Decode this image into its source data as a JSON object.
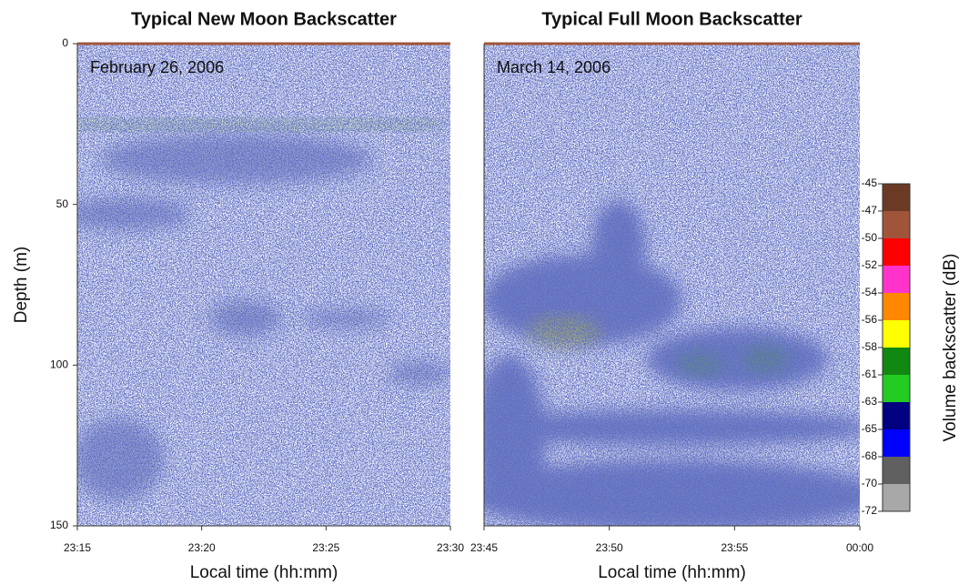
{
  "chart_data": [
    {
      "type": "echogram",
      "title": "Typical New Moon Backscatter",
      "annotation": "February 26, 2006",
      "xlabel": "Local time (hh:mm)",
      "ylabel": "Depth (m)",
      "xticks": [
        "23:15",
        "23:20",
        "23:25",
        "23:30"
      ],
      "ylim": [
        0,
        150
      ],
      "yticks": [
        0,
        50,
        100,
        150
      ],
      "y_inverted": true
    },
    {
      "type": "echogram",
      "title": "Typical Full Moon Backscatter",
      "annotation": "March 14, 2006",
      "xlabel": "Local time (hh:mm)",
      "xticks": [
        "23:45",
        "23:50",
        "23:55",
        "00:00"
      ],
      "ylim": [
        0,
        150
      ],
      "y_inverted": true
    },
    {
      "type": "colorbar",
      "label": "Volume backscatter (dB)",
      "levels": [
        -45,
        -47,
        -50,
        -52,
        -54,
        -56,
        -58,
        -61,
        -63,
        -65,
        -68,
        -70,
        -72
      ],
      "colors": [
        "#6b3a24",
        "#a0553a",
        "#ff0000",
        "#ff33cc",
        "#ff8800",
        "#ffff00",
        "#118811",
        "#22cc22",
        "#000080",
        "#0000ff",
        "#606060",
        "#a8a8a8"
      ]
    }
  ]
}
